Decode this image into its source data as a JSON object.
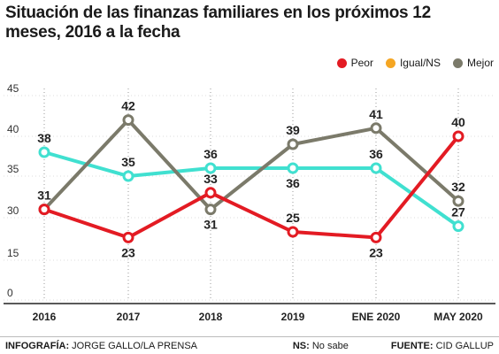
{
  "title": "Situación de las finanzas familiares en los próximos 12 meses, 2016 a la fecha",
  "legend": [
    {
      "name": "Peor",
      "color": "#e31b23"
    },
    {
      "name": "Igual/NS",
      "color": "#f5a623"
    },
    {
      "name": "Mejor",
      "color": "#7b7a6a"
    }
  ],
  "chart_data": {
    "type": "line",
    "categories": [
      "2016",
      "2017",
      "2018",
      "2019",
      "ENE 2020",
      "MAY 2020"
    ],
    "bold_categories": [
      "ENE 2020",
      "MAY 2020"
    ],
    "y_ticks": [
      "45",
      "40",
      "35",
      "30",
      "15",
      "0"
    ],
    "series": [
      {
        "name": "Peor",
        "color": "#e31b23",
        "values": [
          31,
          23,
          33,
          25,
          23,
          40
        ],
        "label_pos": [
          "above",
          "below",
          "above",
          "above",
          "below",
          "above"
        ]
      },
      {
        "name": "Mejor",
        "color": "#7b7a6a",
        "values": [
          31,
          42,
          31,
          39,
          41,
          32
        ],
        "label_pos": [
          "none",
          "above",
          "below",
          "above",
          "above",
          "above"
        ]
      },
      {
        "values": [
          38,
          35,
          36,
          36,
          36,
          27
        ],
        "color": "#40e0d0",
        "label_pos": [
          "above",
          "above",
          "above",
          "below",
          "above",
          "above"
        ]
      }
    ],
    "grid": "vertical-dotted"
  },
  "footer": {
    "credit_label": "INFOGRAFÍA:",
    "credit_value": "JORGE GALLO/LA PRENSA",
    "note_label": "NS:",
    "note_value": "No sabe",
    "source_label": "FUENTE:",
    "source_value": "CID GALLUP"
  }
}
